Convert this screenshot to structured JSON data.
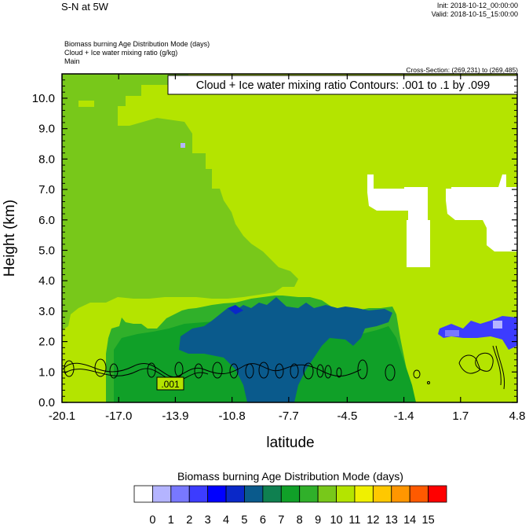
{
  "header": {
    "title": "S-N at 5W",
    "init": "Init: 2018-10-12_00:00:00",
    "valid": "Valid: 2018-10-15_15:00:00",
    "meta_lines": [
      "Biomass burning Age Distribution Mode   (days)",
      "Cloud + Ice water mixing ratio   (g/kg)",
      "Main"
    ],
    "cross_section": "Cross-Section: (269,231) to (269,485)"
  },
  "chart_data": {
    "type": "heatmap",
    "title": "Cloud + Ice water mixing ratio Contours: .001 to .1 by .099",
    "xlabel": "latitude",
    "ylabel": "Height (km)",
    "xlim": [
      -20.1,
      4.8
    ],
    "ylim": [
      0.0,
      10.8
    ],
    "x_ticks": [
      "-20.1",
      "-17.0",
      "-13.9",
      "-10.8",
      "-7.7",
      "-4.5",
      "-1.4",
      "1.7",
      "4.8"
    ],
    "y_ticks": [
      "0.0",
      "1.0",
      "2.0",
      "3.0",
      "4.0",
      "5.0",
      "6.0",
      "7.0",
      "8.0",
      "9.0",
      "10.0"
    ],
    "contour_label": ".001",
    "colorbar": {
      "label": "Biomass burning Age Distribution Mode  (days)",
      "ticks": [
        "0",
        "1",
        "2",
        "3",
        "4",
        "5",
        "6",
        "7",
        "8",
        "9",
        "10",
        "11",
        "12",
        "13",
        "14",
        "15"
      ],
      "colors": [
        "#ffffff",
        "#b4b4ff",
        "#7878ff",
        "#3c3cff",
        "#0000ff",
        "#0a28c8",
        "#0a5a8c",
        "#0f8050",
        "#10a028",
        "#30b02a",
        "#78c81a",
        "#b4e400",
        "#f0f000",
        "#ffc800",
        "#ff9600",
        "#ff5a00",
        "#ff0000"
      ]
    },
    "regions": [
      {
        "value": "10-11",
        "desc": "background",
        "x": [
          -20.1,
          4.8
        ],
        "y": [
          0.0,
          10.8
        ]
      },
      {
        "value": "9-10",
        "desc": "upper-left plume",
        "x": [
          -20.1,
          -6.4
        ],
        "y": [
          1.8,
          10.8
        ]
      },
      {
        "value": "7-9",
        "desc": "mid-level band",
        "x": [
          -18.2,
          0.3
        ],
        "y": [
          1.4,
          3.6
        ]
      },
      {
        "value": "5-6",
        "desc": "dark core",
        "x": [
          -14.3,
          -3.7
        ],
        "y": [
          0.0,
          3.5
        ]
      },
      {
        "value": "2-4",
        "desc": "right blue patch",
        "x": [
          1.0,
          4.8
        ],
        "y": [
          1.8,
          2.7
        ]
      },
      {
        "value": "0-1",
        "desc": "white blocks",
        "x": [
          -4.7,
          4.8
        ],
        "y": [
          4.7,
          7.4
        ]
      }
    ]
  }
}
